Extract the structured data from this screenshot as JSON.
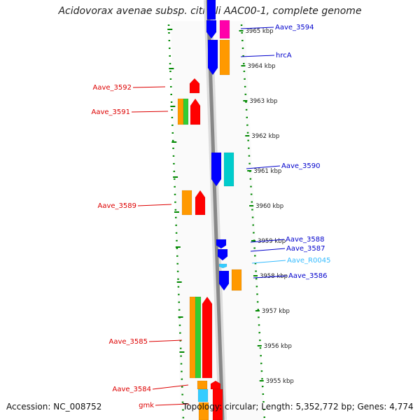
{
  "title": "Acidovorax avenae subsp. citrulli AAC00-1, complete genome",
  "footer": {
    "accession": "Accession: NC_008752",
    "summary": "Topology: circular; Length: 5,352,772 bp; Genes: 4,774"
  },
  "colors": {
    "red": "#ff0000",
    "orange": "#ff9900",
    "green": "#33cc33",
    "blue": "#0000ff",
    "cyan": "#00cccc",
    "magenta": "#ff00aa",
    "lightblue": "#33ccff",
    "darkred_label": "#dd0000",
    "darkblue_label": "#0000cc",
    "cyan_label": "#33bbff",
    "tick_green": "#008800"
  },
  "ticks": [
    {
      "label": "3965 kbp"
    },
    {
      "label": "3964 kbp"
    },
    {
      "label": "3963 kbp"
    },
    {
      "label": "3962 kbp"
    },
    {
      "label": "3961 kbp"
    },
    {
      "label": "3960 kbp"
    },
    {
      "label": "3959 kbp"
    },
    {
      "label": "3958 kbp"
    },
    {
      "label": "3957 kbp"
    },
    {
      "label": "3956 kbp"
    },
    {
      "label": "3955 kbp"
    }
  ],
  "left_labels": [
    {
      "text": "Aave_3592"
    },
    {
      "text": "Aave_3591"
    },
    {
      "text": "Aave_3589"
    },
    {
      "text": "Aave_3585"
    },
    {
      "text": "Aave_3584"
    },
    {
      "text": "gmk"
    }
  ],
  "right_labels": [
    {
      "text": "Aave_3594"
    },
    {
      "text": "hrcA"
    },
    {
      "text": "Aave_3590"
    },
    {
      "text": "Aave_3588"
    },
    {
      "text": "Aave_3587"
    },
    {
      "text": "Aave_R0045"
    },
    {
      "text": "Aave_3586"
    }
  ]
}
